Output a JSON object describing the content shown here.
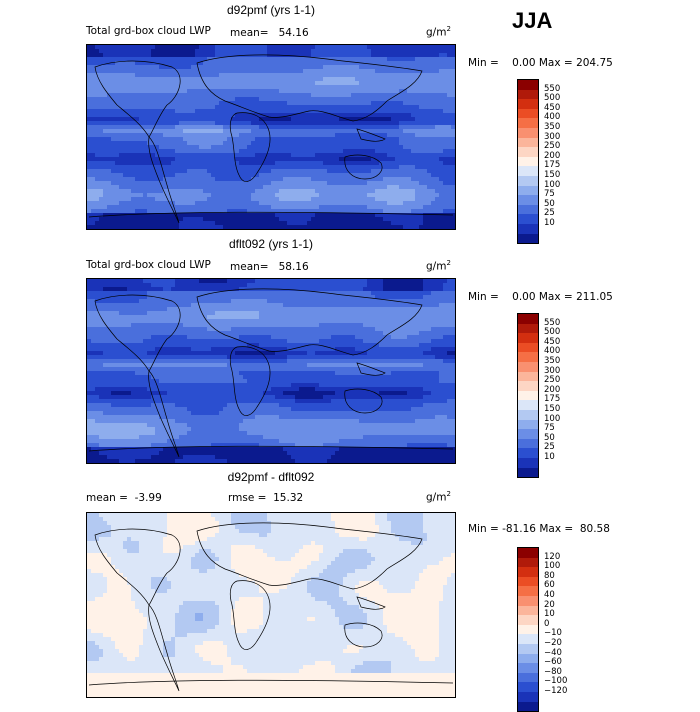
{
  "season": "JJA",
  "chart_data": [
    {
      "type": "heatmap",
      "title": "d92pmf (yrs 1-1)",
      "field_label": "Total grd-box cloud LWP",
      "mean_label": "mean=",
      "mean_value": "54.16",
      "units_base": "g/m",
      "units_exp": "2",
      "min_label": "Min =",
      "min_value": "0.00",
      "max_label": "Max =",
      "max_value": "204.75",
      "colorbar_ticks": [
        "550",
        "500",
        "450",
        "400",
        "350",
        "300",
        "250",
        "200",
        "175",
        "150",
        "100",
        "75",
        "50",
        "25",
        "10"
      ],
      "colors": [
        "#8b0000",
        "#b01a0a",
        "#d32f10",
        "#eb4d24",
        "#f56f45",
        "#f99070",
        "#fbb59b",
        "#fdd6c4",
        "#fff2e8",
        "#dbe6f8",
        "#b3c9f2",
        "#8eaded",
        "#6b8ee6",
        "#4a6fdc",
        "#2b4fd0",
        "#1a33b8",
        "#0b1a8e"
      ],
      "field_kind": "abs",
      "seed": 11
    },
    {
      "type": "heatmap",
      "title": "dflt092 (yrs 1-1)",
      "field_label": "Total grd-box cloud LWP",
      "mean_label": "mean=",
      "mean_value": "58.16",
      "units_base": "g/m",
      "units_exp": "2",
      "min_label": "Min =",
      "min_value": "0.00",
      "max_label": "Max =",
      "max_value": "211.05",
      "colorbar_ticks": [
        "550",
        "500",
        "450",
        "400",
        "350",
        "300",
        "250",
        "200",
        "175",
        "150",
        "100",
        "75",
        "50",
        "25",
        "10"
      ],
      "colors": [
        "#8b0000",
        "#b01a0a",
        "#d32f10",
        "#eb4d24",
        "#f56f45",
        "#f99070",
        "#fbb59b",
        "#fdd6c4",
        "#fff2e8",
        "#dbe6f8",
        "#b3c9f2",
        "#8eaded",
        "#6b8ee6",
        "#4a6fdc",
        "#2b4fd0",
        "#1a33b8",
        "#0b1a8e"
      ],
      "field_kind": "abs",
      "seed": 29
    },
    {
      "type": "heatmap",
      "title": "d92pmf - dflt092",
      "mean_label": "mean =",
      "mean_value": "-3.99",
      "rmse_label": "rmse =",
      "rmse_value": "15.32",
      "units_base": "g/m",
      "units_exp": "2",
      "min_label": "Min =",
      "min_value": "-81.16",
      "max_label": "Max =",
      "max_value": "80.58",
      "colorbar_ticks": [
        "120",
        "100",
        "80",
        "60",
        "40",
        "20",
        "10",
        "0",
        "−10",
        "−20",
        "−40",
        "−60",
        "−80",
        "−100",
        "−120"
      ],
      "colors": [
        "#8b0000",
        "#b01a0a",
        "#d32f10",
        "#eb4d24",
        "#f56f45",
        "#f99070",
        "#fbb59b",
        "#fdd6c4",
        "#fff2e8",
        "#dbe6f8",
        "#b3c9f2",
        "#8eaded",
        "#6b8ee6",
        "#4a6fdc",
        "#2b4fd0",
        "#1a33b8",
        "#0b1a8e"
      ],
      "field_kind": "diff",
      "seed": 53
    }
  ]
}
